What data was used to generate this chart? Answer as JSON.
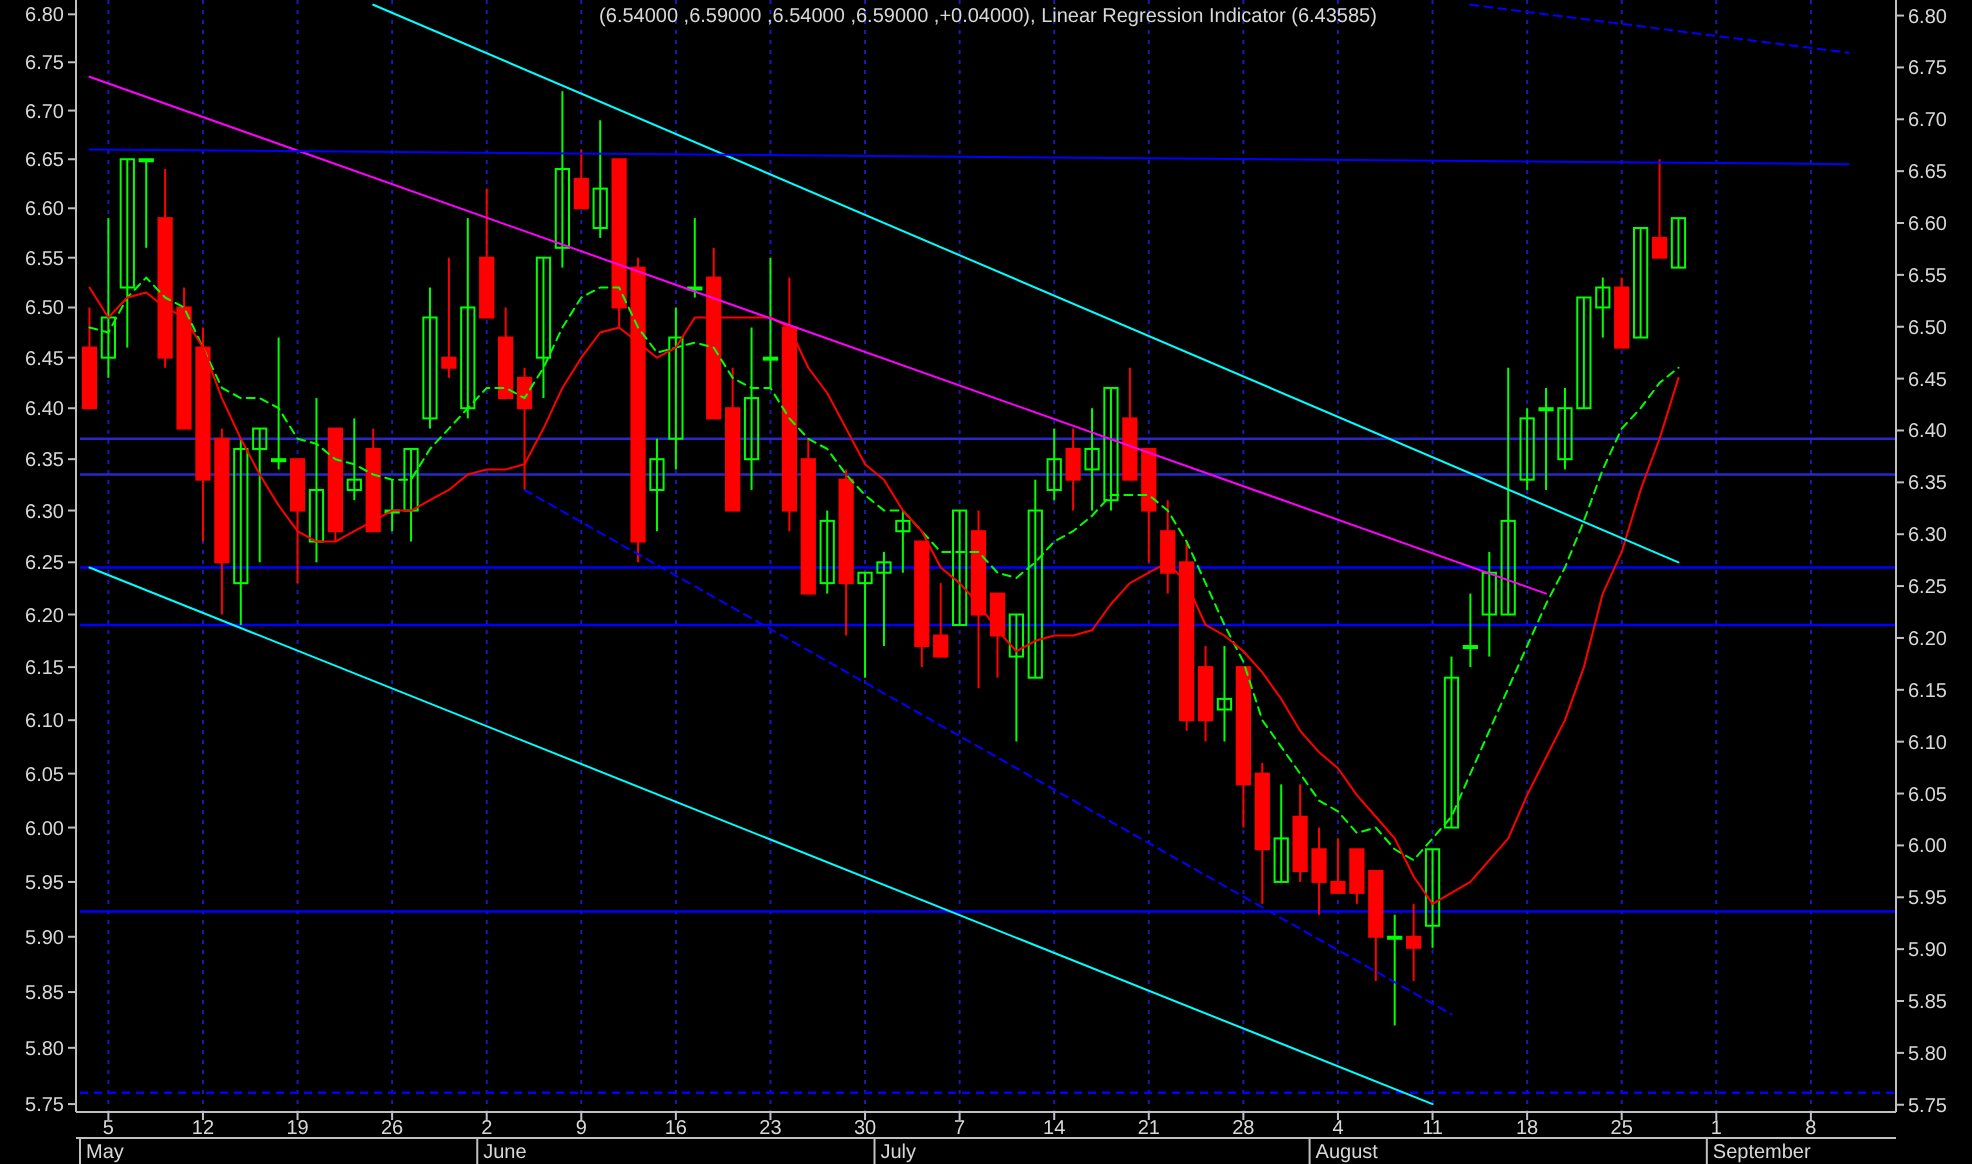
{
  "chart_data": {
    "type": "candlestick",
    "title": "(6.54000 ,6.59000 ,6.54000 ,6.59000 ,+0.04000), Linear Regression Indicator (6.43585)",
    "categories": [
      null,
      "5",
      null,
      null,
      null,
      null,
      "12",
      null,
      null,
      null,
      null,
      "19",
      null,
      null,
      null,
      null,
      "26",
      null,
      null,
      null,
      null,
      "2",
      null,
      null,
      null,
      null,
      "9",
      null,
      null,
      null,
      null,
      "16",
      null,
      null,
      null,
      null,
      "23",
      null,
      null,
      null,
      null,
      "30",
      null,
      null,
      null,
      null,
      "7",
      null,
      null,
      null,
      null,
      "14",
      null,
      null,
      null,
      null,
      "21",
      null,
      null,
      null,
      null,
      "28",
      null,
      null,
      null,
      null,
      "4",
      null,
      null,
      null,
      null,
      "11",
      null,
      null,
      null,
      null,
      "18",
      null,
      null,
      null,
      null,
      "25",
      null,
      null,
      null,
      null,
      "1",
      null,
      null,
      null,
      null,
      "8",
      null,
      null,
      null,
      null
    ],
    "ohlc": [
      [
        6.46,
        6.5,
        6.4,
        6.4
      ],
      [
        6.45,
        6.59,
        6.43,
        6.49
      ],
      [
        6.52,
        6.65,
        6.46,
        6.65
      ],
      [
        6.65,
        6.65,
        6.56,
        6.65
      ],
      [
        6.59,
        6.64,
        6.44,
        6.45
      ],
      [
        6.5,
        6.52,
        6.38,
        6.38
      ],
      [
        6.46,
        6.48,
        6.27,
        6.33
      ],
      [
        6.37,
        6.38,
        6.2,
        6.25
      ],
      [
        6.23,
        6.37,
        6.19,
        6.36
      ],
      [
        6.36,
        6.38,
        6.25,
        6.38
      ],
      [
        6.35,
        6.47,
        6.34,
        6.35
      ],
      [
        6.35,
        6.35,
        6.23,
        6.3
      ],
      [
        6.27,
        6.41,
        6.25,
        6.32
      ],
      [
        6.38,
        6.38,
        6.27,
        6.28
      ],
      [
        6.32,
        6.39,
        6.31,
        6.33
      ],
      [
        6.36,
        6.38,
        6.28,
        6.28
      ],
      [
        6.3,
        6.33,
        6.28,
        6.3
      ],
      [
        6.3,
        6.36,
        6.27,
        6.36
      ],
      [
        6.39,
        6.52,
        6.38,
        6.49
      ],
      [
        6.45,
        6.55,
        6.43,
        6.44
      ],
      [
        6.4,
        6.59,
        6.39,
        6.5
      ],
      [
        6.55,
        6.62,
        6.49,
        6.49
      ],
      [
        6.47,
        6.5,
        6.41,
        6.41
      ],
      [
        6.43,
        6.44,
        6.32,
        6.4
      ],
      [
        6.45,
        6.55,
        6.41,
        6.55
      ],
      [
        6.56,
        6.72,
        6.54,
        6.64
      ],
      [
        6.63,
        6.66,
        6.6,
        6.6
      ],
      [
        6.58,
        6.69,
        6.57,
        6.62
      ],
      [
        6.65,
        6.65,
        6.48,
        6.5
      ],
      [
        6.54,
        6.55,
        6.25,
        6.27
      ],
      [
        6.32,
        6.37,
        6.28,
        6.35
      ],
      [
        6.37,
        6.5,
        6.34,
        6.47
      ],
      [
        6.52,
        6.59,
        6.51,
        6.52
      ],
      [
        6.53,
        6.56,
        6.39,
        6.39
      ],
      [
        6.4,
        6.44,
        6.3,
        6.3
      ],
      [
        6.35,
        6.48,
        6.32,
        6.41
      ],
      [
        6.45,
        6.55,
        6.42,
        6.45
      ],
      [
        6.48,
        6.53,
        6.28,
        6.3
      ],
      [
        6.35,
        6.37,
        6.22,
        6.22
      ],
      [
        6.23,
        6.3,
        6.22,
        6.29
      ],
      [
        6.33,
        6.34,
        6.18,
        6.23
      ],
      [
        6.23,
        6.24,
        6.14,
        6.24
      ],
      [
        6.24,
        6.26,
        6.17,
        6.25
      ],
      [
        6.28,
        6.3,
        6.24,
        6.29
      ],
      [
        6.27,
        6.27,
        6.15,
        6.17
      ],
      [
        6.18,
        6.23,
        6.16,
        6.16
      ],
      [
        6.19,
        6.3,
        6.19,
        6.3
      ],
      [
        6.28,
        6.3,
        6.13,
        6.2
      ],
      [
        6.22,
        6.22,
        6.14,
        6.18
      ],
      [
        6.16,
        6.2,
        6.08,
        6.2
      ],
      [
        6.14,
        6.33,
        6.14,
        6.3
      ],
      [
        6.32,
        6.38,
        6.31,
        6.35
      ],
      [
        6.36,
        6.38,
        6.3,
        6.33
      ],
      [
        6.34,
        6.4,
        6.3,
        6.36
      ],
      [
        6.31,
        6.42,
        6.3,
        6.42
      ],
      [
        6.39,
        6.44,
        6.33,
        6.33
      ],
      [
        6.36,
        6.36,
        6.25,
        6.3
      ],
      [
        6.28,
        6.31,
        6.22,
        6.24
      ],
      [
        6.25,
        6.27,
        6.09,
        6.1
      ],
      [
        6.15,
        6.17,
        6.08,
        6.1
      ],
      [
        6.11,
        6.17,
        6.08,
        6.12
      ],
      [
        6.15,
        6.15,
        6.0,
        6.04
      ],
      [
        6.05,
        6.06,
        5.93,
        5.98
      ],
      [
        5.95,
        6.04,
        5.95,
        5.99
      ],
      [
        6.01,
        6.04,
        5.95,
        5.96
      ],
      [
        5.98,
        6.0,
        5.92,
        5.95
      ],
      [
        5.95,
        5.99,
        5.94,
        5.94
      ],
      [
        5.98,
        5.98,
        5.93,
        5.94
      ],
      [
        5.96,
        5.96,
        5.86,
        5.9
      ],
      [
        5.9,
        5.92,
        5.82,
        5.9
      ],
      [
        5.9,
        5.93,
        5.86,
        5.89
      ],
      [
        5.91,
        5.98,
        5.89,
        5.98
      ],
      [
        6.0,
        6.16,
        6.0,
        6.14
      ],
      [
        6.17,
        6.22,
        6.15,
        6.17
      ],
      [
        6.2,
        6.26,
        6.16,
        6.24
      ],
      [
        6.2,
        6.44,
        6.2,
        6.29
      ],
      [
        6.33,
        6.4,
        6.32,
        6.39
      ],
      [
        6.4,
        6.42,
        6.32,
        6.4
      ],
      [
        6.35,
        6.42,
        6.34,
        6.4
      ],
      [
        6.4,
        6.51,
        6.4,
        6.51
      ],
      [
        6.5,
        6.53,
        6.47,
        6.52
      ],
      [
        6.52,
        6.53,
        6.46,
        6.46
      ],
      [
        6.47,
        6.58,
        6.47,
        6.58
      ],
      [
        6.57,
        6.65,
        6.55,
        6.55
      ],
      [
        6.54,
        6.59,
        6.54,
        6.59
      ],
      null,
      null,
      null,
      null,
      null,
      null,
      null,
      null,
      null,
      null,
      null
    ],
    "series": [
      {
        "type": "line",
        "color": "#00ff00",
        "line_style": "dashed",
        "values": [
          6.48,
          6.475,
          6.51,
          6.53,
          6.51,
          6.5,
          6.46,
          6.42,
          6.41,
          6.41,
          6.4,
          6.37,
          6.365,
          6.35,
          6.345,
          6.335,
          6.33,
          6.33,
          6.36,
          6.38,
          6.4,
          6.42,
          6.42,
          6.41,
          6.44,
          6.48,
          6.51,
          6.52,
          6.52,
          6.48,
          6.455,
          6.46,
          6.465,
          6.46,
          6.43,
          6.42,
          6.42,
          6.39,
          6.37,
          6.36,
          6.335,
          6.315,
          6.3,
          6.3,
          6.28,
          6.26,
          6.26,
          6.26,
          6.24,
          6.235,
          6.25,
          6.27,
          6.28,
          6.295,
          6.315,
          6.315,
          6.315,
          6.3,
          6.27,
          6.23,
          6.19,
          6.155,
          6.1,
          6.075,
          6.05,
          6.025,
          6.015,
          5.995,
          6.0,
          5.98,
          5.97,
          5.99,
          6.01,
          6.05,
          6.09,
          6.13,
          6.17,
          6.21,
          6.245,
          6.29,
          6.34,
          6.38,
          6.4,
          6.425,
          6.44,
          null,
          null,
          null,
          null,
          null,
          null,
          null,
          null,
          null,
          null,
          null
        ]
      },
      {
        "type": "line",
        "color": "#ff0000",
        "values": [
          6.52,
          6.49,
          6.51,
          6.515,
          6.5,
          6.49,
          6.46,
          6.41,
          6.37,
          6.335,
          6.305,
          6.28,
          6.27,
          6.27,
          6.28,
          6.29,
          6.3,
          6.3,
          6.31,
          6.32,
          6.335,
          6.34,
          6.34,
          6.345,
          6.38,
          6.42,
          6.45,
          6.475,
          6.48,
          6.465,
          6.45,
          6.46,
          6.49,
          6.49,
          6.49,
          6.49,
          6.49,
          6.48,
          6.44,
          6.415,
          6.38,
          6.345,
          6.33,
          6.3,
          6.28,
          6.245,
          6.23,
          6.21,
          6.185,
          6.165,
          6.175,
          6.18,
          6.18,
          6.185,
          6.21,
          6.23,
          6.24,
          6.25,
          6.23,
          6.19,
          6.18,
          6.165,
          6.145,
          6.12,
          6.09,
          6.07,
          6.055,
          6.03,
          6.01,
          5.99,
          5.955,
          5.93,
          5.94,
          5.95,
          5.97,
          5.99,
          6.03,
          6.065,
          6.1,
          6.15,
          6.22,
          6.26,
          6.32,
          6.37,
          6.43,
          null,
          null,
          null,
          null,
          null,
          null,
          null,
          null,
          null,
          null,
          null
        ]
      },
      {
        "type": "line",
        "color": "#ff00ff",
        "values": [
          6.735,
          null,
          null,
          null,
          null,
          null,
          null,
          null,
          null,
          null,
          null,
          null,
          null,
          null,
          null,
          null,
          null,
          null,
          null,
          null,
          null,
          null,
          null,
          null,
          null,
          null,
          null,
          null,
          null,
          null,
          null,
          null,
          null,
          null,
          null,
          null,
          null,
          null,
          null,
          null,
          null,
          null,
          null,
          null,
          null,
          null,
          null,
          null,
          null,
          null,
          null,
          null,
          null,
          null,
          null,
          null,
          null,
          null,
          null,
          null,
          null,
          null,
          null,
          null,
          null,
          null,
          null,
          null,
          null,
          null,
          null,
          null,
          null,
          null,
          null,
          null,
          null,
          6.22,
          null,
          null,
          null,
          null,
          null,
          null,
          null,
          null,
          null,
          null,
          null,
          null,
          null,
          null,
          null,
          null,
          null,
          null
        ]
      },
      {
        "type": "line",
        "color": "#00ffff",
        "values": [
          null,
          null,
          null,
          null,
          null,
          null,
          null,
          null,
          null,
          null,
          null,
          null,
          null,
          null,
          null,
          6.81,
          null,
          null,
          null,
          null,
          null,
          null,
          null,
          null,
          null,
          null,
          null,
          null,
          null,
          null,
          null,
          null,
          null,
          null,
          null,
          null,
          null,
          null,
          null,
          null,
          null,
          null,
          null,
          null,
          null,
          null,
          null,
          null,
          null,
          null,
          null,
          null,
          null,
          null,
          null,
          null,
          null,
          null,
          null,
          null,
          null,
          null,
          null,
          null,
          null,
          null,
          null,
          null,
          null,
          null,
          null,
          null,
          null,
          null,
          null,
          null,
          null,
          null,
          null,
          null,
          null,
          null,
          null,
          null,
          6.25,
          null,
          null,
          null,
          null,
          null,
          null,
          null,
          null,
          null,
          null,
          null
        ]
      },
      {
        "type": "line",
        "color": "#00ffff",
        "values": [
          6.245,
          null,
          null,
          null,
          null,
          null,
          null,
          null,
          null,
          null,
          null,
          null,
          null,
          null,
          null,
          null,
          null,
          null,
          null,
          null,
          null,
          null,
          null,
          null,
          null,
          null,
          null,
          null,
          null,
          null,
          null,
          null,
          null,
          null,
          null,
          null,
          null,
          null,
          null,
          null,
          null,
          null,
          null,
          null,
          null,
          null,
          null,
          null,
          null,
          null,
          null,
          null,
          null,
          null,
          null,
          null,
          null,
          null,
          null,
          null,
          null,
          null,
          null,
          null,
          null,
          null,
          null,
          null,
          null,
          null,
          null,
          5.75,
          null,
          null,
          null,
          null,
          null,
          null,
          null,
          null,
          null,
          null,
          null,
          null,
          null,
          null,
          null,
          null,
          null,
          null,
          null,
          null,
          null,
          null,
          null,
          null
        ]
      },
      {
        "type": "line",
        "color": "#0000ff",
        "line_style": "dashed",
        "values": [
          null,
          null,
          null,
          null,
          null,
          null,
          null,
          null,
          null,
          null,
          null,
          null,
          null,
          null,
          null,
          null,
          null,
          null,
          null,
          null,
          null,
          null,
          null,
          6.32,
          null,
          null,
          null,
          null,
          null,
          null,
          null,
          null,
          null,
          null,
          null,
          null,
          null,
          null,
          null,
          null,
          null,
          null,
          null,
          null,
          null,
          null,
          null,
          null,
          null,
          null,
          null,
          null,
          null,
          null,
          null,
          null,
          null,
          null,
          null,
          null,
          null,
          null,
          null,
          null,
          null,
          null,
          null,
          null,
          null,
          null,
          null,
          null,
          5.83,
          null,
          null,
          null,
          null,
          null,
          null,
          null,
          null,
          null,
          null,
          null,
          null,
          null,
          null,
          null,
          null,
          null,
          null,
          null,
          null,
          null,
          null,
          null
        ]
      },
      {
        "type": "line",
        "color": "#0000ff",
        "line_style": "dashed",
        "values": [
          null,
          null,
          null,
          null,
          null,
          null,
          null,
          null,
          null,
          null,
          null,
          null,
          null,
          null,
          null,
          null,
          null,
          null,
          null,
          null,
          null,
          null,
          null,
          null,
          null,
          null,
          null,
          null,
          null,
          null,
          null,
          null,
          null,
          null,
          null,
          null,
          null,
          null,
          null,
          null,
          null,
          null,
          null,
          null,
          null,
          null,
          null,
          null,
          null,
          null,
          null,
          null,
          null,
          null,
          null,
          null,
          null,
          null,
          null,
          null,
          null,
          null,
          null,
          null,
          null,
          null,
          null,
          null,
          null,
          null,
          null,
          null,
          null,
          6.81,
          null,
          null,
          null,
          null,
          null,
          null,
          null,
          null,
          null,
          null,
          null,
          null,
          null,
          null,
          null,
          null,
          null,
          null,
          null,
          6.76,
          null,
          null
        ]
      },
      {
        "type": "line",
        "color": "#0000ff",
        "values": [
          6.66,
          null,
          null,
          null,
          null,
          null,
          null,
          null,
          null,
          null,
          null,
          null,
          null,
          null,
          null,
          null,
          null,
          null,
          null,
          null,
          null,
          null,
          null,
          null,
          null,
          null,
          null,
          null,
          null,
          null,
          null,
          null,
          null,
          null,
          null,
          null,
          null,
          null,
          null,
          null,
          null,
          null,
          null,
          null,
          null,
          null,
          null,
          null,
          null,
          null,
          null,
          null,
          null,
          null,
          null,
          null,
          null,
          null,
          null,
          null,
          null,
          null,
          null,
          null,
          null,
          null,
          null,
          null,
          null,
          null,
          null,
          null,
          null,
          null,
          null,
          null,
          null,
          null,
          null,
          null,
          null,
          null,
          null,
          null,
          null,
          null,
          null,
          null,
          null,
          null,
          null,
          null,
          null,
          6.645,
          null,
          null
        ]
      }
    ],
    "ref_lines": [
      {
        "axis": "y",
        "value": 6.37,
        "color": "#2828c8"
      },
      {
        "axis": "y",
        "value": 6.335,
        "color": "#2828c8"
      },
      {
        "axis": "y",
        "value": 6.245,
        "color": "#0000ff"
      },
      {
        "axis": "y",
        "value": 6.19,
        "color": "#0000ff"
      },
      {
        "axis": "y",
        "value": 5.923,
        "color": "#0000ff"
      },
      {
        "axis": "y",
        "value": 5.76,
        "color": "#0000ff",
        "line_style": "dashed"
      }
    ],
    "annotations": [
      "May",
      "June",
      "July",
      "August",
      "September"
    ],
    "log": true,
    "ylim": [
      5.743,
      6.815
    ],
    "yticks": [
      {
        "value": 5.75,
        "label": "5.75"
      },
      {
        "value": 5.8,
        "label": "5.80"
      },
      {
        "value": 5.85,
        "label": "5.85"
      },
      {
        "value": 5.9,
        "label": "5.90"
      },
      {
        "value": 5.95,
        "label": "5.95"
      },
      {
        "value": 6.0,
        "label": "6.00"
      },
      {
        "value": 6.05,
        "label": "6.05"
      },
      {
        "value": 6.1,
        "label": "6.10"
      },
      {
        "value": 6.15,
        "label": "6.15"
      },
      {
        "value": 6.2,
        "label": "6.20"
      },
      {
        "value": 6.25,
        "label": "6.25"
      },
      {
        "value": 6.3,
        "label": "6.30"
      },
      {
        "value": 6.35,
        "label": "6.35"
      },
      {
        "value": 6.4,
        "label": "6.40"
      },
      {
        "value": 6.45,
        "label": "6.45"
      },
      {
        "value": 6.5,
        "label": "6.50"
      },
      {
        "value": 6.55,
        "label": "6.55"
      },
      {
        "value": 6.6,
        "label": "6.60"
      },
      {
        "value": 6.65,
        "label": "6.65"
      },
      {
        "value": 6.7,
        "label": "6.70"
      },
      {
        "value": 6.75,
        "label": "6.75"
      },
      {
        "value": 6.8,
        "label": "6.80"
      }
    ],
    "y2lim": [
      5.743,
      6.815
    ],
    "y2ticks": [
      {
        "value": 5.75,
        "label": "5.75"
      },
      {
        "value": 5.8,
        "label": "5.80"
      },
      {
        "value": 5.85,
        "label": "5.85"
      },
      {
        "value": 5.9,
        "label": "5.90"
      },
      {
        "value": 5.95,
        "label": "5.95"
      },
      {
        "value": 6.0,
        "label": "6.00"
      },
      {
        "value": 6.05,
        "label": "6.05"
      },
      {
        "value": 6.1,
        "label": "6.10"
      },
      {
        "value": 6.15,
        "label": "6.15"
      },
      {
        "value": 6.2,
        "label": "6.20"
      },
      {
        "value": 6.25,
        "label": "6.25"
      },
      {
        "value": 6.3,
        "label": "6.30"
      },
      {
        "value": 6.35,
        "label": "6.35"
      },
      {
        "value": 6.4,
        "label": "6.40"
      },
      {
        "value": 6.45,
        "label": "6.45"
      },
      {
        "value": 6.5,
        "label": "6.50"
      },
      {
        "value": 6.55,
        "label": "6.55"
      },
      {
        "value": 6.6,
        "label": "6.60"
      },
      {
        "value": 6.65,
        "label": "6.65"
      },
      {
        "value": 6.7,
        "label": "6.70"
      },
      {
        "value": 6.75,
        "label": "6.75"
      },
      {
        "value": 6.8,
        "label": "6.80"
      }
    ],
    "grid": "x"
  }
}
